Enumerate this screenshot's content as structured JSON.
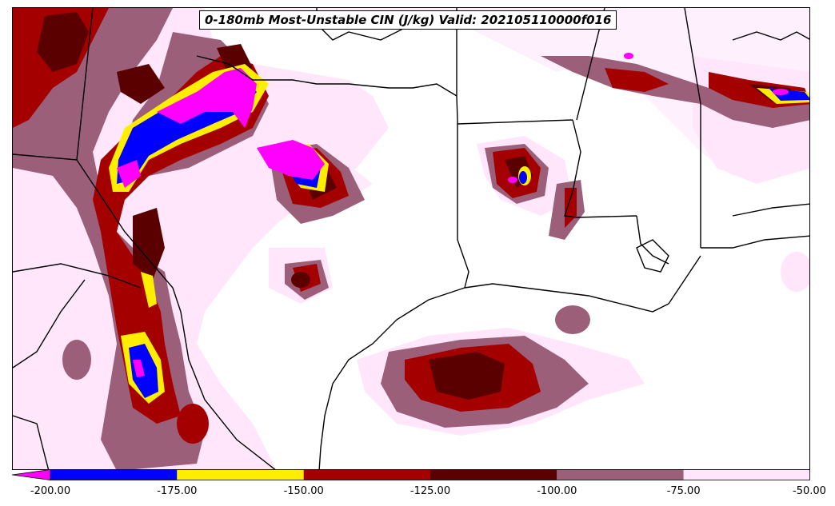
{
  "title": "0-180mb Most-Unstable CIN (J/kg) Valid: 202105110000f016",
  "colorbar": {
    "extend": "min",
    "ticks": [
      "-200.00",
      "-175.00",
      "-150.00",
      "-125.00",
      "-100.00",
      "-75.00",
      "-50.00"
    ],
    "levels": [
      -200,
      -175,
      -150,
      -125,
      -100,
      -75,
      -50
    ],
    "colors": [
      "#0000ff",
      "#ffee00",
      "#a50000",
      "#5a0000",
      "#9b5f7a",
      "#ffe6fb"
    ],
    "under_color": "#ff00ff"
  },
  "colors": {
    "magenta": "#ff00ff",
    "blue": "#0000ff",
    "yellow": "#ffee00",
    "red": "#a50000",
    "dark_red": "#5a0000",
    "mauve": "#9b5f7a",
    "light_pink": "#ffe6fb",
    "boundary": "#000000"
  }
}
